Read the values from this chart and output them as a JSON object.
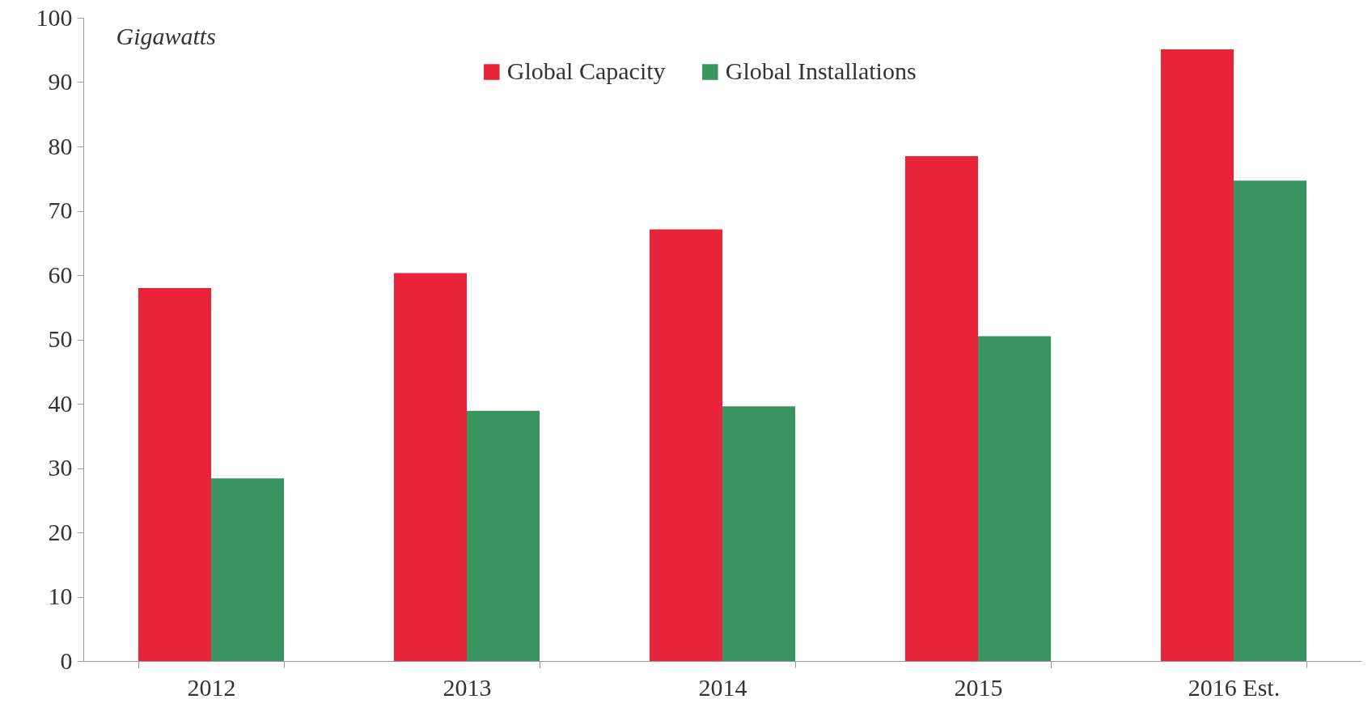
{
  "chart_data": {
    "type": "bar",
    "ylabel": "Gigawatts",
    "categories": [
      "2012",
      "2013",
      "2014",
      "2015",
      "2016 Est."
    ],
    "series": [
      {
        "name": "Global Capacity",
        "color": "#e8243a",
        "values": [
          58,
          60.3,
          67.1,
          78.5,
          95.1
        ]
      },
      {
        "name": "Global Installations",
        "color": "#3a9460",
        "values": [
          28.4,
          38.9,
          39.6,
          50.5,
          74.7
        ]
      }
    ],
    "ylim": [
      0,
      100
    ],
    "yticks": [
      0,
      10,
      20,
      30,
      40,
      50,
      60,
      70,
      80,
      90,
      100
    ],
    "grid": false,
    "legend": "top"
  }
}
